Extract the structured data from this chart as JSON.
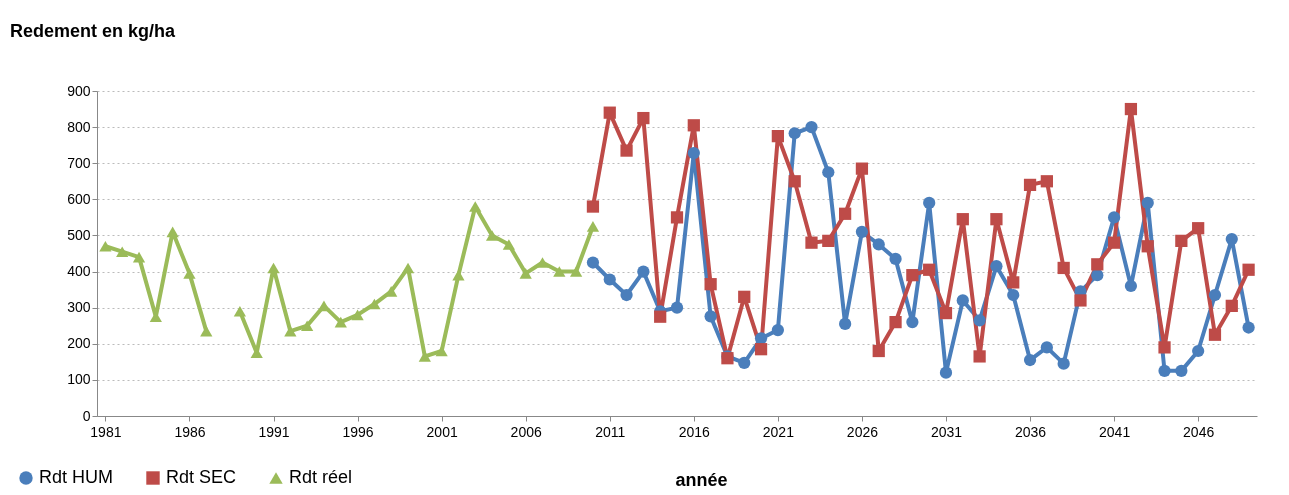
{
  "chart_data": {
    "type": "line",
    "title": "Redement en kg/ha",
    "xlabel": "année",
    "categories": [
      "1981",
      null,
      null,
      null,
      null,
      "1986",
      null,
      null,
      null,
      null,
      "1991",
      null,
      null,
      null,
      null,
      "1996",
      null,
      null,
      null,
      null,
      "2001",
      null,
      null,
      null,
      null,
      "2006",
      null,
      null,
      null,
      null,
      "2011",
      null,
      null,
      null,
      null,
      "2016",
      null,
      null,
      null,
      null,
      "2021",
      null,
      null,
      null,
      null,
      "2026",
      null,
      null,
      null,
      null,
      "2031",
      null,
      null,
      null,
      null,
      "2036",
      null,
      null,
      null,
      null,
      "2041",
      null,
      null,
      null,
      null,
      "2046",
      null,
      null,
      null
    ],
    "series": [
      {
        "name": "Rdt HUM",
        "color": "#4a7ebb",
        "marker": "circle",
        "values": [
          null,
          null,
          null,
          null,
          null,
          null,
          null,
          null,
          null,
          null,
          null,
          null,
          null,
          null,
          null,
          null,
          null,
          null,
          null,
          null,
          null,
          null,
          null,
          null,
          null,
          null,
          null,
          null,
          null,
          425,
          378,
          335,
          400,
          290,
          300,
          728,
          276,
          165,
          147,
          215,
          238,
          783,
          800,
          675,
          255,
          510,
          475,
          435,
          260,
          590,
          120,
          320,
          265,
          415,
          335,
          155,
          190,
          145,
          345,
          390,
          550,
          360,
          590,
          125,
          125,
          180,
          335,
          490,
          245
        ]
      },
      {
        "name": "Rdt SEC",
        "color": "#be4b48",
        "marker": "square",
        "values": [
          null,
          null,
          null,
          null,
          null,
          null,
          null,
          null,
          null,
          null,
          null,
          null,
          null,
          null,
          null,
          null,
          null,
          null,
          null,
          null,
          null,
          null,
          null,
          null,
          null,
          null,
          null,
          null,
          null,
          580,
          840,
          735,
          825,
          275,
          550,
          805,
          365,
          160,
          330,
          185,
          775,
          650,
          480,
          485,
          560,
          685,
          180,
          260,
          390,
          405,
          285,
          545,
          165,
          545,
          370,
          640,
          650,
          410,
          320,
          420,
          480,
          850,
          470,
          190,
          485,
          520,
          225,
          305,
          405
        ]
      },
      {
        "name": "Rdt réel",
        "color": "#9bbb59",
        "marker": "triangle",
        "values": [
          470,
          455,
          440,
          275,
          510,
          395,
          235,
          null,
          290,
          175,
          410,
          235,
          250,
          305,
          260,
          280,
          310,
          345,
          410,
          165,
          180,
          390,
          580,
          500,
          475,
          395,
          425,
          400,
          400,
          525,
          null,
          null,
          null,
          null,
          null,
          null,
          null,
          null,
          null,
          null,
          null,
          null,
          null,
          null,
          null,
          null,
          null,
          null,
          null,
          null,
          null,
          null,
          null,
          null,
          null,
          null,
          null,
          null,
          null,
          null,
          null,
          null,
          null,
          null,
          null,
          null,
          null,
          null,
          null
        ]
      }
    ],
    "ylim": [
      0,
      900
    ],
    "yticks": [
      0,
      100,
      200,
      300,
      400,
      500,
      600,
      700,
      800,
      900
    ],
    "grid": "y",
    "legend": "bottom left",
    "line_style": "solid"
  }
}
